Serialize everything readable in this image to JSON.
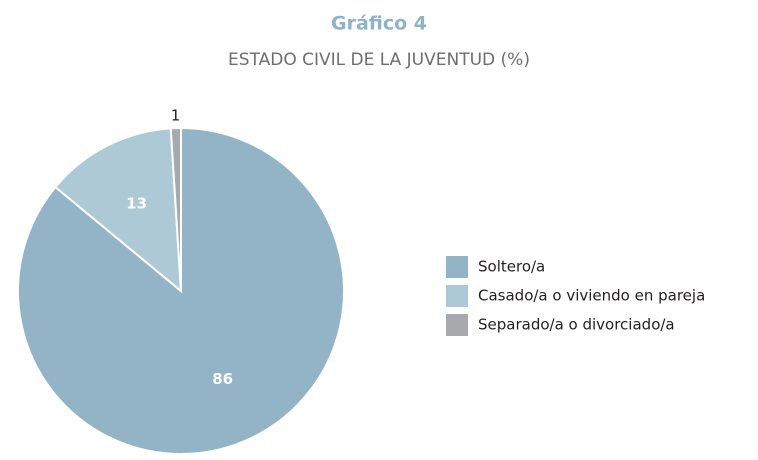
{
  "chart_data": {
    "type": "pie",
    "title": "Gráfico 4",
    "subtitle": "ESTADO CIVIL DE LA JUVENTUD (%)",
    "categories": [
      "Soltero/a",
      "Casado/a o viviendo en pareja",
      "Separado/a o divorciado/a"
    ],
    "values": [
      86,
      13,
      1
    ],
    "colors": [
      "#93b4c6",
      "#adc9d6",
      "#a7a9ac"
    ],
    "legend": "right"
  }
}
